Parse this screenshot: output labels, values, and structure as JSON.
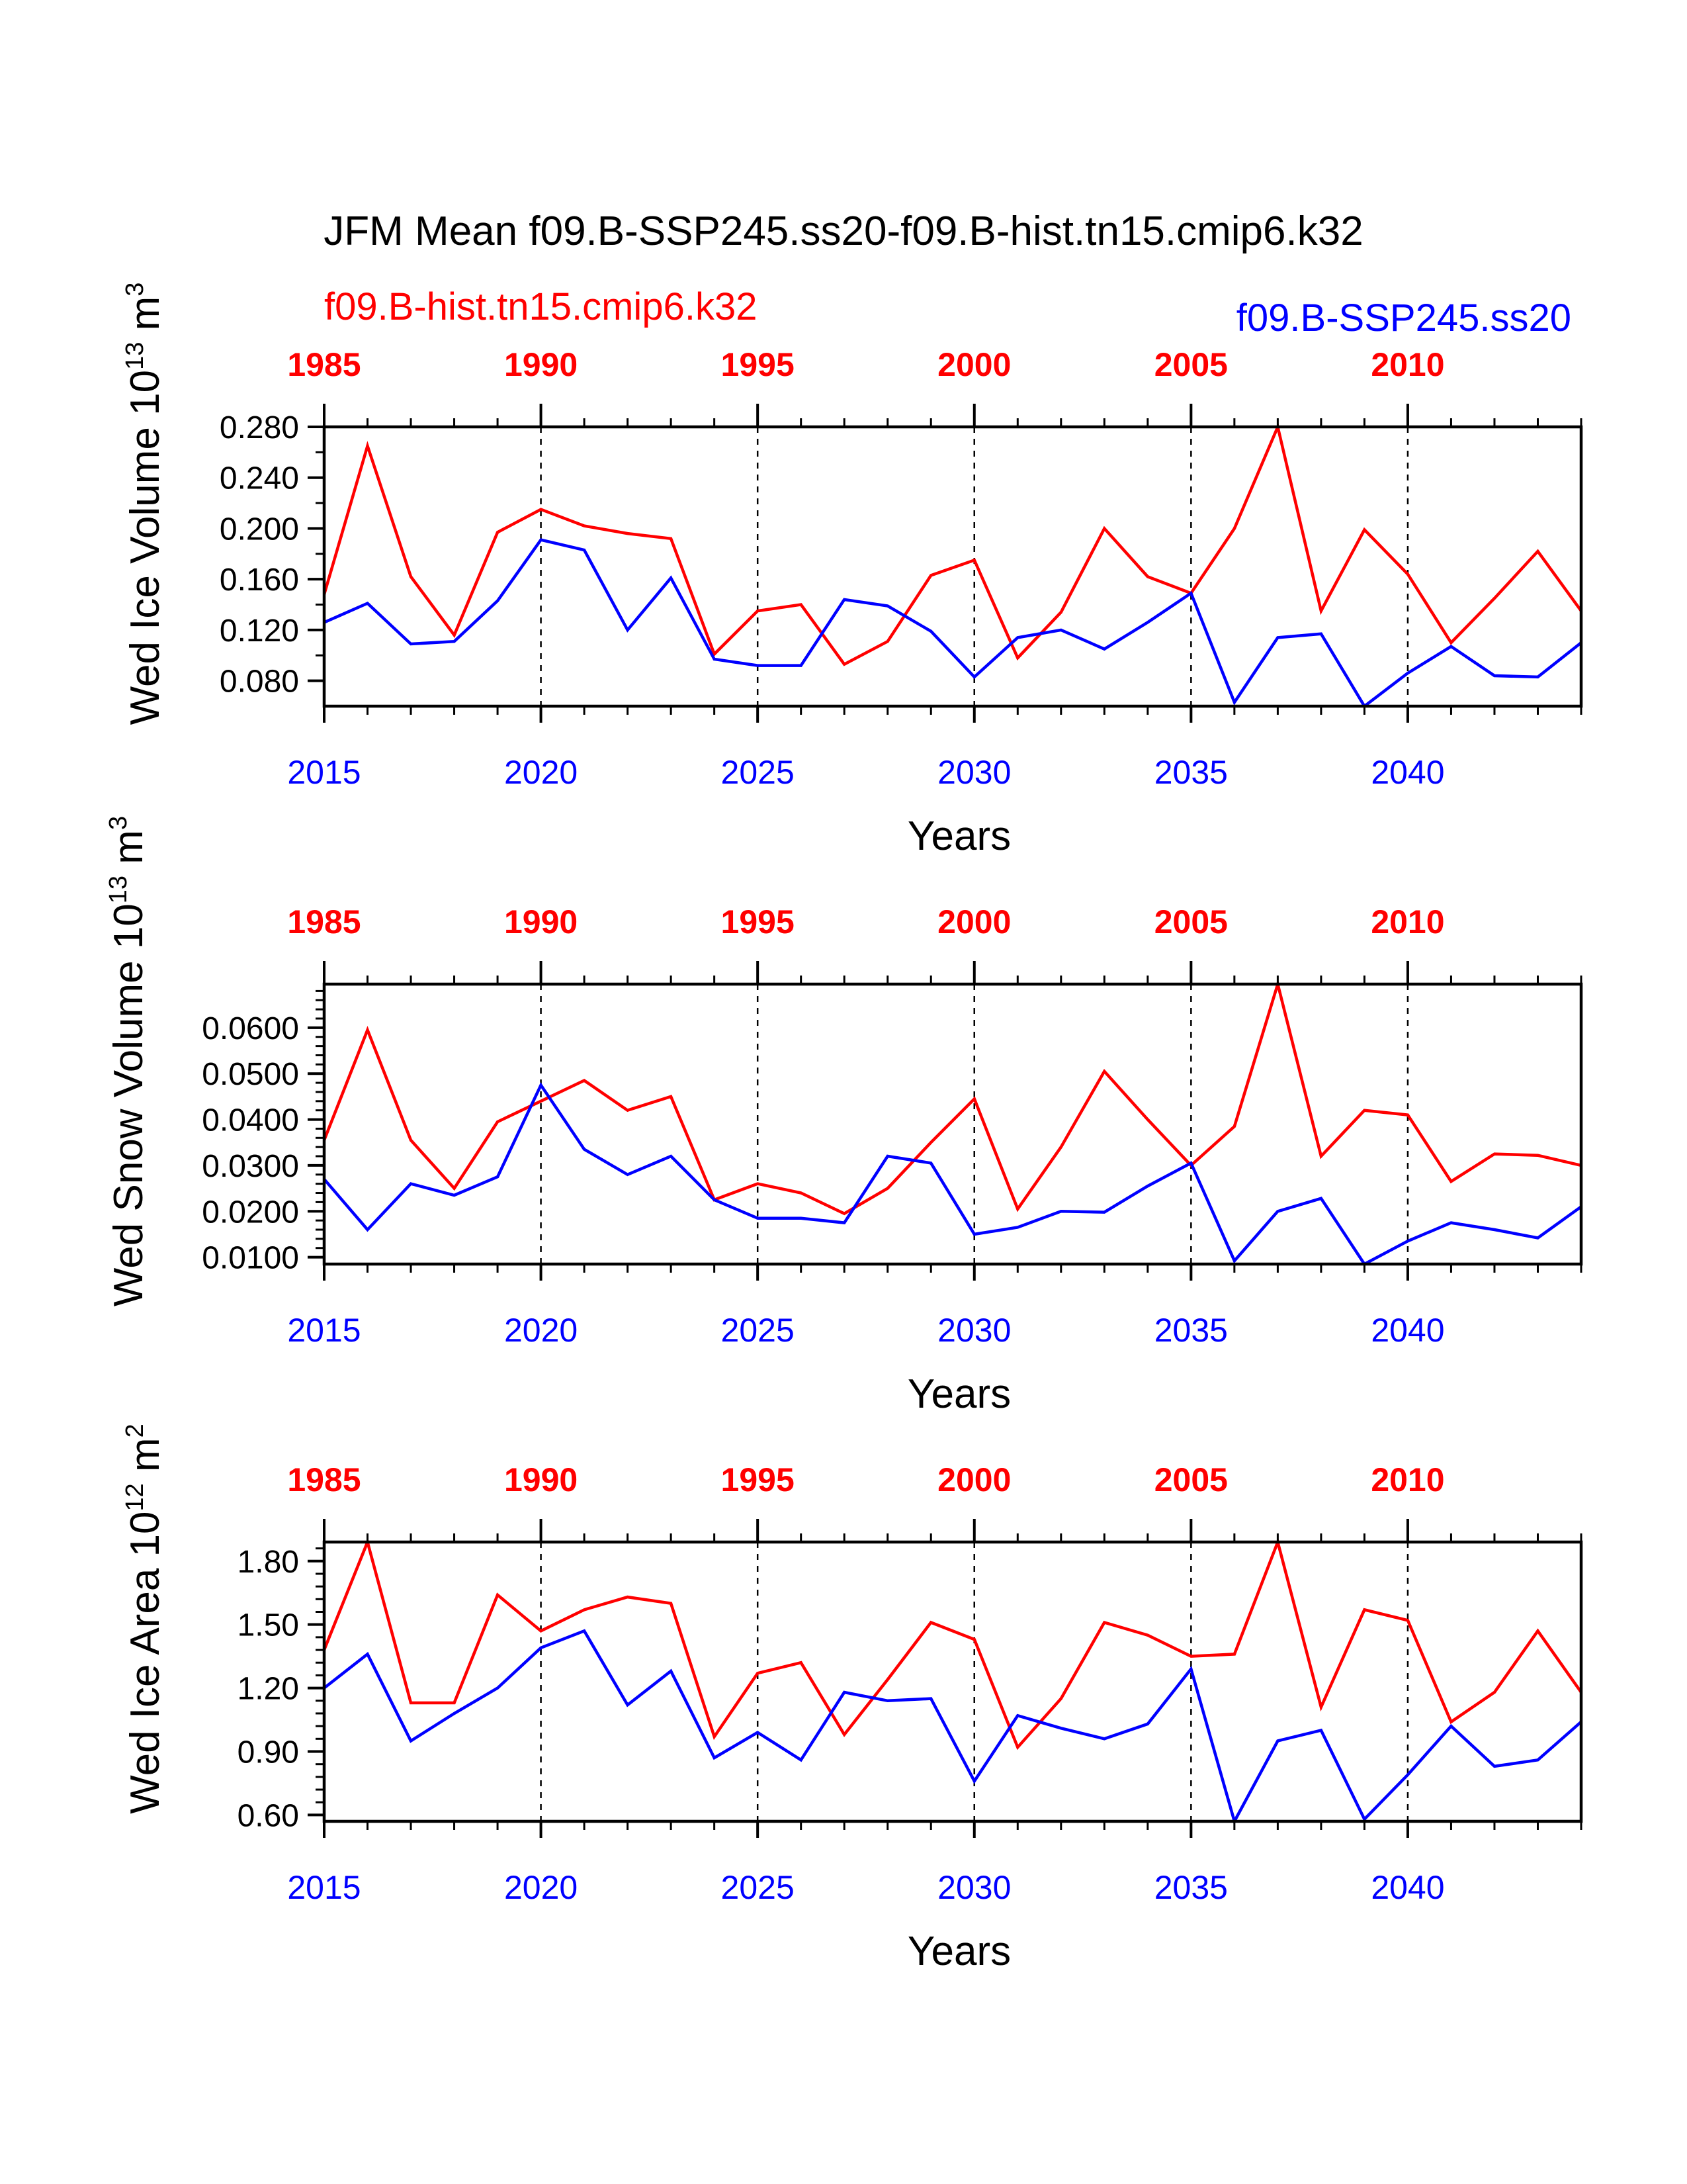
{
  "title": "JFM Mean f09.B-SSP245.ss20-f09.B-hist.tn15.cmip6.k32",
  "legend_red": "f09.B-hist.tn15.cmip6.k32",
  "legend_blue": "f09.B-SSP245.ss20",
  "colors": {
    "hist": "#ff0000",
    "ssp": "#0000ff",
    "axis": "#000000"
  },
  "chart_data": [
    {
      "type": "line",
      "ylabel": "Wed Ice Volume 10",
      "ylabel_exp": "13",
      "ylabel_unit": " m",
      "ylabel_unit_exp": "3",
      "xlabel": "Years",
      "ylim": [
        0.06,
        0.28
      ],
      "ytick_values": [
        0.08,
        0.12,
        0.16,
        0.2,
        0.24,
        0.28
      ],
      "ytick_labels": [
        "0.080",
        "0.120",
        "0.160",
        "0.200",
        "0.240",
        "0.280"
      ],
      "yminor_values": [
        0.1,
        0.14,
        0.18,
        0.22,
        0.26
      ],
      "xlim": [
        2015,
        2044
      ],
      "xtick_values": [
        2015,
        2020,
        2025,
        2030,
        2035,
        2040
      ],
      "xtick_labels": [
        "2015",
        "2020",
        "2025",
        "2030",
        "2035",
        "2040"
      ],
      "top_tick_labels": [
        "1985",
        "1990",
        "1995",
        "2000",
        "2005",
        "2010"
      ],
      "grid_x": [
        2020,
        2025,
        2030,
        2035,
        2040
      ],
      "x": [
        2015,
        2016,
        2017,
        2018,
        2019,
        2020,
        2021,
        2022,
        2023,
        2024,
        2025,
        2026,
        2027,
        2028,
        2029,
        2030,
        2031,
        2032,
        2033,
        2034,
        2035,
        2036,
        2037,
        2038,
        2039,
        2040,
        2041,
        2042,
        2043,
        2044
      ],
      "series": [
        {
          "name": "f09.B-hist.tn15.cmip6.k32",
          "color": "#ff0000",
          "values": [
            0.148,
            0.265,
            0.162,
            0.116,
            0.197,
            0.215,
            0.202,
            0.196,
            0.192,
            0.101,
            0.135,
            0.14,
            0.093,
            0.111,
            0.163,
            0.175,
            0.098,
            0.134,
            0.2,
            0.162,
            0.149,
            0.2,
            0.28,
            0.135,
            0.199,
            0.164,
            0.11,
            0.145,
            0.182,
            0.135
          ]
        },
        {
          "name": "f09.B-SSP245.ss20",
          "color": "#0000ff",
          "values": [
            0.126,
            0.141,
            0.109,
            0.111,
            0.143,
            0.191,
            0.183,
            0.12,
            0.161,
            0.097,
            0.092,
            0.092,
            0.144,
            0.139,
            0.119,
            0.083,
            0.114,
            0.12,
            0.105,
            0.126,
            0.149,
            0.063,
            0.114,
            0.117,
            0.06,
            0.086,
            0.107,
            0.084,
            0.083,
            0.11
          ]
        }
      ]
    },
    {
      "type": "line",
      "ylabel": "Wed Snow Volume 10",
      "ylabel_exp": "13",
      "ylabel_unit": " m",
      "ylabel_unit_exp": "3",
      "xlabel": "Years",
      "ylim": [
        0.0085,
        0.0695
      ],
      "ytick_values": [
        0.01,
        0.02,
        0.03,
        0.04,
        0.05,
        0.06
      ],
      "ytick_labels": [
        "0.0100",
        "0.0200",
        "0.0300",
        "0.0400",
        "0.0500",
        "0.0600"
      ],
      "yminor_values": [
        0.012,
        0.014,
        0.016,
        0.018,
        0.022,
        0.024,
        0.026,
        0.028,
        0.032,
        0.034,
        0.036,
        0.038,
        0.042,
        0.044,
        0.046,
        0.048,
        0.052,
        0.054,
        0.056,
        0.058,
        0.062,
        0.064,
        0.066,
        0.068
      ],
      "xlim": [
        2015,
        2044
      ],
      "xtick_values": [
        2015,
        2020,
        2025,
        2030,
        2035,
        2040
      ],
      "xtick_labels": [
        "2015",
        "2020",
        "2025",
        "2030",
        "2035",
        "2040"
      ],
      "top_tick_labels": [
        "1985",
        "1990",
        "1995",
        "2000",
        "2005",
        "2010"
      ],
      "grid_x": [
        2020,
        2025,
        2030,
        2035,
        2040
      ],
      "x": [
        2015,
        2016,
        2017,
        2018,
        2019,
        2020,
        2021,
        2022,
        2023,
        2024,
        2025,
        2026,
        2027,
        2028,
        2029,
        2030,
        2031,
        2032,
        2033,
        2034,
        2035,
        2036,
        2037,
        2038,
        2039,
        2040,
        2041,
        2042,
        2043,
        2044
      ],
      "series": [
        {
          "name": "f09.B-hist.tn15.cmip6.k32",
          "color": "#ff0000",
          "values": [
            0.0355,
            0.0595,
            0.0355,
            0.025,
            0.0395,
            0.044,
            0.0485,
            0.042,
            0.045,
            0.0225,
            0.026,
            0.024,
            0.0195,
            0.025,
            0.035,
            0.0445,
            0.0205,
            0.034,
            0.0505,
            0.04,
            0.03,
            0.0385,
            0.0695,
            0.032,
            0.042,
            0.041,
            0.0265,
            0.0325,
            0.0322,
            0.03
          ]
        },
        {
          "name": "f09.B-SSP245.ss20",
          "color": "#0000ff",
          "values": [
            0.027,
            0.016,
            0.026,
            0.0235,
            0.0275,
            0.0475,
            0.0335,
            0.028,
            0.032,
            0.0225,
            0.0185,
            0.0185,
            0.0175,
            0.032,
            0.0305,
            0.015,
            0.0165,
            0.02,
            0.0198,
            0.0255,
            0.0305,
            0.0092,
            0.02,
            0.0228,
            0.0085,
            0.0135,
            0.0175,
            0.016,
            0.0142,
            0.021
          ]
        }
      ]
    },
    {
      "type": "line",
      "ylabel": "Wed Ice Area 10",
      "ylabel_exp": "12",
      "ylabel_unit": " m",
      "ylabel_unit_exp": "2",
      "xlabel": "Years",
      "ylim": [
        0.57,
        1.89
      ],
      "ytick_values": [
        0.6,
        0.9,
        1.2,
        1.5,
        1.8
      ],
      "ytick_labels": [
        "0.60",
        "0.90",
        "1.20",
        "1.50",
        "1.80"
      ],
      "yminor_values": [
        0.66,
        0.72,
        0.78,
        0.84,
        0.96,
        1.02,
        1.08,
        1.14,
        1.26,
        1.32,
        1.38,
        1.44,
        1.56,
        1.62,
        1.68,
        1.74,
        1.86
      ],
      "xlim": [
        2015,
        2044
      ],
      "xtick_values": [
        2015,
        2020,
        2025,
        2030,
        2035,
        2040
      ],
      "xtick_labels": [
        "2015",
        "2020",
        "2025",
        "2030",
        "2035",
        "2040"
      ],
      "top_tick_labels": [
        "1985",
        "1990",
        "1995",
        "2000",
        "2005",
        "2010"
      ],
      "grid_x": [
        2020,
        2025,
        2030,
        2035,
        2040
      ],
      "x": [
        2015,
        2016,
        2017,
        2018,
        2019,
        2020,
        2021,
        2022,
        2023,
        2024,
        2025,
        2026,
        2027,
        2028,
        2029,
        2030,
        2031,
        2032,
        2033,
        2034,
        2035,
        2036,
        2037,
        2038,
        2039,
        2040,
        2041,
        2042,
        2043,
        2044
      ],
      "series": [
        {
          "name": "f09.B-hist.tn15.cmip6.k32",
          "color": "#ff0000",
          "values": [
            1.38,
            1.89,
            1.13,
            1.13,
            1.64,
            1.47,
            1.57,
            1.63,
            1.6,
            0.97,
            1.27,
            1.32,
            0.98,
            1.24,
            1.51,
            1.43,
            0.92,
            1.15,
            1.51,
            1.45,
            1.35,
            1.36,
            1.89,
            1.11,
            1.57,
            1.52,
            1.04,
            1.18,
            1.47,
            1.18
          ]
        },
        {
          "name": "f09.B-SSP245.ss20",
          "color": "#0000ff",
          "values": [
            1.2,
            1.36,
            0.95,
            1.08,
            1.2,
            1.39,
            1.47,
            1.12,
            1.28,
            0.87,
            0.99,
            0.86,
            1.18,
            1.14,
            1.15,
            0.76,
            1.07,
            1.01,
            0.96,
            1.03,
            1.29,
            0.57,
            0.95,
            1.0,
            0.58,
            0.79,
            1.02,
            0.83,
            0.86,
            1.04
          ]
        }
      ]
    }
  ]
}
